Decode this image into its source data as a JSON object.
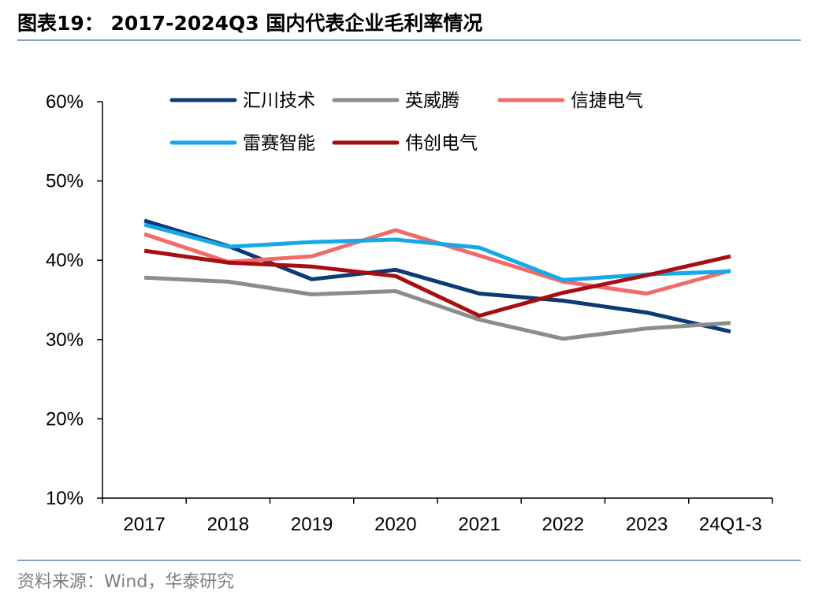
{
  "title": "图表19： 2017-2024Q3 国内代表企业毛利率情况",
  "source": "资料来源：Wind，华泰研究",
  "chart_data": {
    "type": "line",
    "categories": [
      "2017",
      "2018",
      "2019",
      "2020",
      "2021",
      "2022",
      "2023",
      "24Q1-3"
    ],
    "ylim": [
      10,
      60
    ],
    "yticks": [
      10,
      20,
      30,
      40,
      50,
      60
    ],
    "ytick_labels": [
      "10%",
      "20%",
      "30%",
      "40%",
      "50%",
      "60%"
    ],
    "xlabel": "",
    "ylabel": "",
    "legend_position": "top",
    "series": [
      {
        "name": "汇川技术",
        "color": "#0d3a73",
        "values": [
          45.0,
          41.8,
          37.6,
          38.8,
          35.8,
          34.9,
          33.4,
          31.0
        ]
      },
      {
        "name": "英威腾",
        "color": "#8c8c8c",
        "values": [
          37.8,
          37.3,
          35.7,
          36.1,
          32.5,
          30.1,
          31.4,
          32.1
        ]
      },
      {
        "name": "信捷电气",
        "color": "#f26b6b",
        "values": [
          43.3,
          39.8,
          40.5,
          43.8,
          40.6,
          37.3,
          35.8,
          38.7
        ]
      },
      {
        "name": "雷赛智能",
        "color": "#16a9ea",
        "values": [
          44.5,
          41.7,
          42.3,
          42.6,
          41.6,
          37.5,
          38.2,
          38.6
        ]
      },
      {
        "name": "伟创电气",
        "color": "#a80e10",
        "values": [
          41.2,
          39.7,
          39.2,
          38.0,
          33.0,
          35.9,
          38.1,
          40.5
        ]
      }
    ]
  }
}
